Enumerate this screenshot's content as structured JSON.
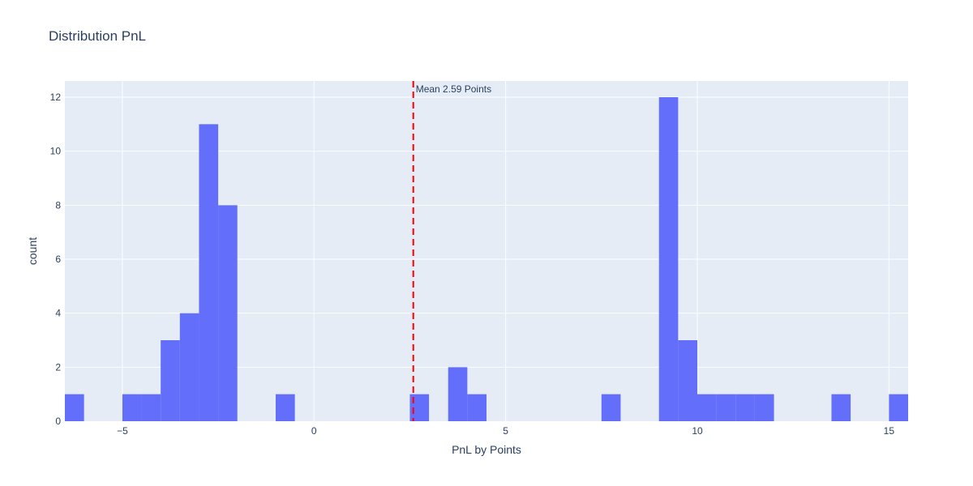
{
  "chart_data": {
    "type": "bar",
    "title": "Distribution PnL",
    "xlabel": "PnL by Points",
    "ylabel": "count",
    "xlim": [
      -6.5,
      15.5
    ],
    "ylim": [
      0,
      12.6
    ],
    "bin_width": 0.5,
    "x_ticks": [
      {
        "value": -5,
        "label": "−5"
      },
      {
        "value": 0,
        "label": "0"
      },
      {
        "value": 5,
        "label": "5"
      },
      {
        "value": 10,
        "label": "10"
      },
      {
        "value": 15,
        "label": "15"
      }
    ],
    "y_ticks": [
      {
        "value": 0,
        "label": "0"
      },
      {
        "value": 2,
        "label": "2"
      },
      {
        "value": 4,
        "label": "4"
      },
      {
        "value": 6,
        "label": "6"
      },
      {
        "value": 8,
        "label": "8"
      },
      {
        "value": 10,
        "label": "10"
      },
      {
        "value": 12,
        "label": "12"
      }
    ],
    "bins": [
      {
        "x0": -6.5,
        "x1": -6.0,
        "count": 1
      },
      {
        "x0": -5.0,
        "x1": -4.5,
        "count": 1
      },
      {
        "x0": -4.5,
        "x1": -4.0,
        "count": 1
      },
      {
        "x0": -4.0,
        "x1": -3.5,
        "count": 3
      },
      {
        "x0": -3.5,
        "x1": -3.0,
        "count": 4
      },
      {
        "x0": -3.0,
        "x1": -2.5,
        "count": 11
      },
      {
        "x0": -2.5,
        "x1": -2.0,
        "count": 8
      },
      {
        "x0": -1.0,
        "x1": -0.5,
        "count": 1
      },
      {
        "x0": 2.5,
        "x1": 3.0,
        "count": 1
      },
      {
        "x0": 3.5,
        "x1": 4.0,
        "count": 2
      },
      {
        "x0": 4.0,
        "x1": 4.5,
        "count": 1
      },
      {
        "x0": 7.5,
        "x1": 8.0,
        "count": 1
      },
      {
        "x0": 9.0,
        "x1": 9.5,
        "count": 12
      },
      {
        "x0": 9.5,
        "x1": 10.0,
        "count": 3
      },
      {
        "x0": 10.0,
        "x1": 10.5,
        "count": 1
      },
      {
        "x0": 10.5,
        "x1": 11.0,
        "count": 1
      },
      {
        "x0": 11.0,
        "x1": 11.5,
        "count": 1
      },
      {
        "x0": 11.5,
        "x1": 12.0,
        "count": 1
      },
      {
        "x0": 13.5,
        "x1": 14.0,
        "count": 1
      },
      {
        "x0": 15.0,
        "x1": 15.5,
        "count": 1
      }
    ],
    "mean_line": {
      "value": 2.59,
      "label": "Mean 2.59 Points",
      "color": "#ff0000"
    },
    "bar_color": "#636efa",
    "plot_bg": "#e5ecf6",
    "grid": true,
    "grid_color": "#ffffff"
  }
}
